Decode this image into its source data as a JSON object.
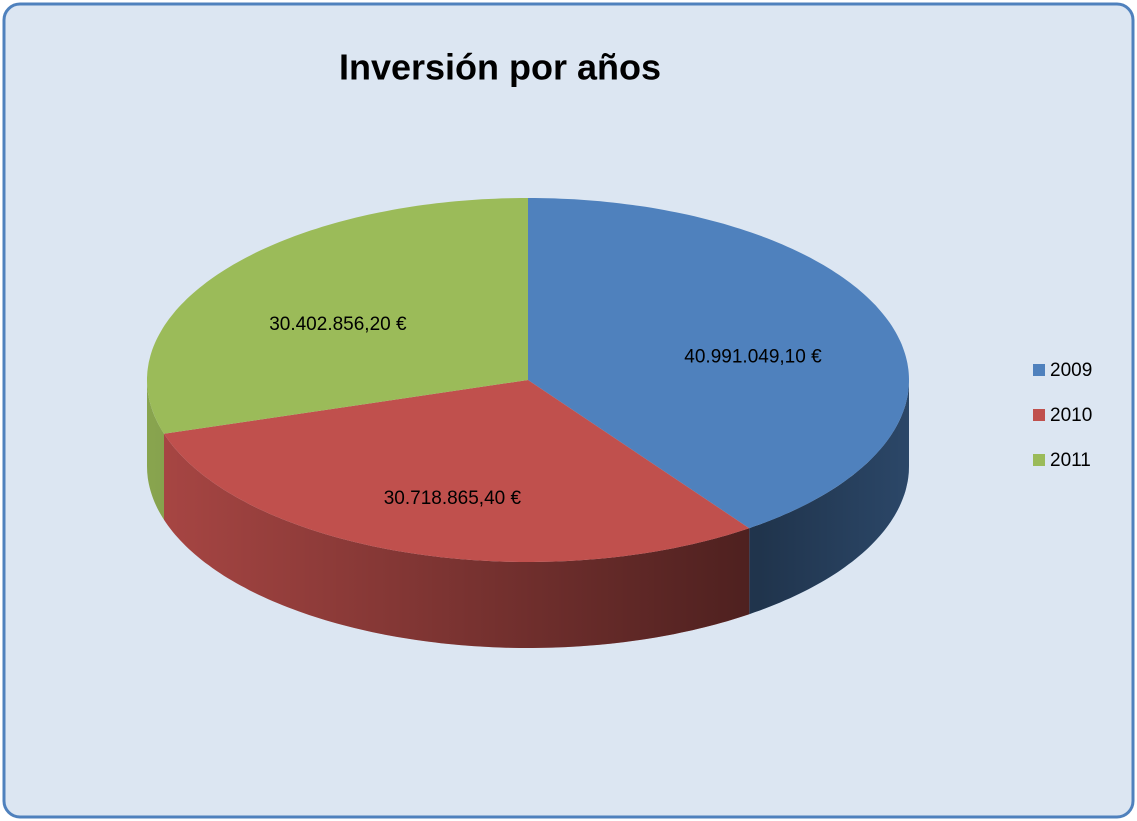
{
  "chart_data": {
    "type": "pie",
    "title": "Inversión por años",
    "categories": [
      "2009",
      "2010",
      "2011"
    ],
    "values": [
      40991049.1,
      30718865.4,
      30402856.2
    ],
    "value_labels": [
      "40.991.049,10 €",
      "30.718.865,40 €",
      "30.402.856,20 €"
    ],
    "colors": [
      "#4f81bd",
      "#c0504d",
      "#9bbb59"
    ],
    "legend": "right"
  }
}
